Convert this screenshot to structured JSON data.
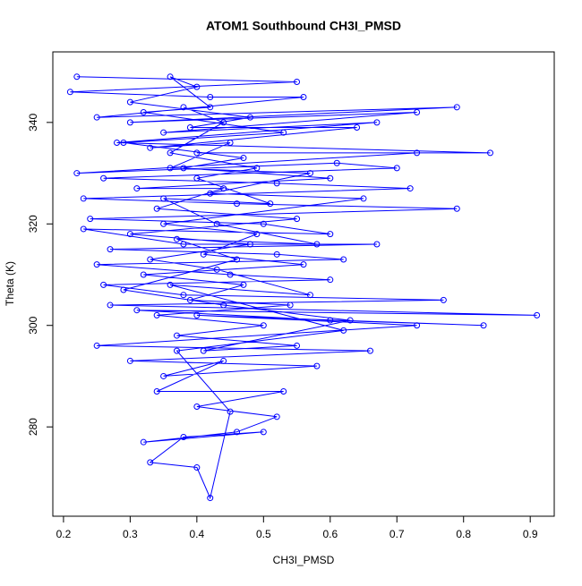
{
  "chart_data": {
    "type": "line",
    "title": "ATOM1 Southbound CH3I_PMSD",
    "x_label": "CH3I_PMSD",
    "y_label": "Theta (K)",
    "color": "#0000ff",
    "marker": "circle",
    "x": [
      0.22,
      0.55,
      0.21,
      0.42,
      0.56,
      0.25,
      0.79,
      0.3,
      0.73,
      0.35,
      0.67,
      0.28,
      0.84,
      0.4,
      0.73,
      0.22,
      0.61,
      0.7,
      0.26,
      0.52,
      0.72,
      0.23,
      0.46,
      0.79,
      0.24,
      0.5,
      0.6,
      0.23,
      0.38,
      0.67,
      0.27,
      0.52,
      0.62,
      0.25,
      0.45,
      0.6,
      0.26,
      0.38,
      0.77,
      0.27,
      0.91,
      0.31,
      0.6,
      0.83,
      0.4,
      0.73,
      0.25,
      0.66,
      0.3,
      0.58,
      0.35,
      0.44,
      0.34,
      0.53,
      0.4,
      0.52,
      0.46,
      0.32,
      0.5,
      0.38,
      0.33,
      0.4,
      0.42,
      0.45,
      0.37,
      0.62,
      0.36,
      0.57,
      0.43,
      0.33,
      0.48,
      0.3,
      0.55,
      0.34,
      0.44,
      0.31,
      0.6,
      0.38,
      0.47,
      0.29,
      0.53,
      0.32,
      0.42,
      0.36,
      0.4,
      0.3,
      0.48,
      0.39,
      0.64,
      0.33,
      0.45,
      0.36,
      0.57,
      0.42,
      0.65,
      0.35,
      0.49,
      0.41,
      0.56,
      0.32,
      0.47,
      0.39,
      0.54,
      0.34,
      0.5,
      0.37,
      0.55,
      0.41,
      0.63,
      0.44,
      0.29,
      0.46,
      0.37,
      0.58,
      0.43,
      0.35,
      0.51,
      0.4,
      0.49,
      0.36,
      0.44,
      0.38
    ],
    "values": [
      349,
      348,
      346,
      345,
      345,
      341,
      343,
      340,
      342,
      338,
      340,
      336,
      334,
      334,
      334,
      330,
      332,
      331,
      329,
      328,
      327,
      325,
      324,
      323,
      321,
      320,
      318,
      319,
      316,
      316,
      315,
      314,
      313,
      312,
      310,
      309,
      308,
      306,
      305,
      304,
      302,
      303,
      301,
      300,
      302,
      300,
      296,
      295,
      293,
      292,
      290,
      293,
      287,
      287,
      284,
      282,
      279,
      277,
      279,
      278,
      273,
      272,
      266,
      283,
      295,
      299,
      308,
      306,
      311,
      313,
      316,
      318,
      321,
      323,
      327,
      327,
      329,
      331,
      333,
      336,
      338,
      342,
      343,
      349,
      347,
      344,
      341,
      339,
      339,
      335,
      336,
      331,
      330,
      326,
      325,
      320,
      318,
      314,
      312,
      310,
      308,
      305,
      304,
      302,
      300,
      298,
      296,
      295,
      301,
      304,
      307,
      313,
      317,
      316,
      320,
      325,
      324,
      329,
      331,
      334,
      340,
      343
    ],
    "xlim": [
      0.184,
      0.936
    ],
    "xticks": [
      0.2,
      0.3,
      0.4,
      0.5,
      0.6,
      0.7,
      0.8,
      0.9
    ],
    "ylim": [
      262.4,
      353.9
    ],
    "yticks": [
      280,
      300,
      320,
      340
    ]
  }
}
